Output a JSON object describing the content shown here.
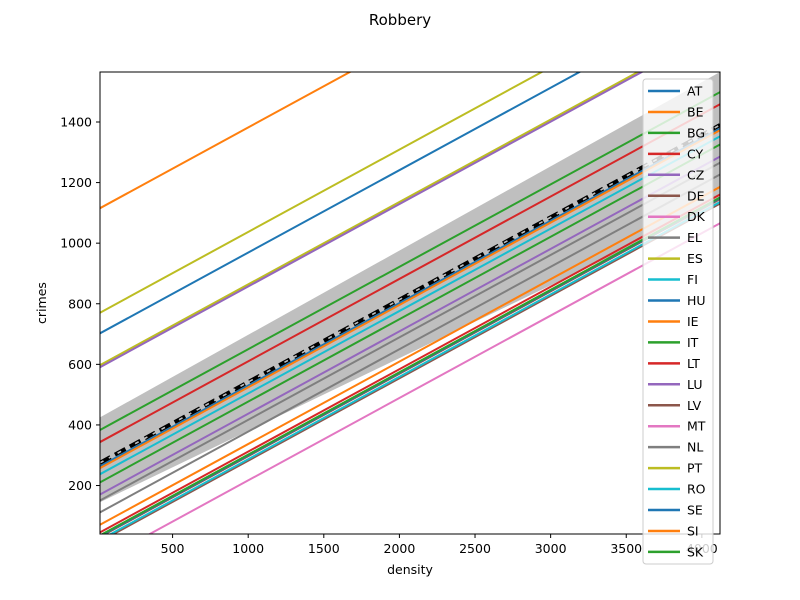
{
  "chart_data": {
    "type": "line",
    "title": "Robbery",
    "xlabel": "density",
    "ylabel": "crimes",
    "xlim": [
      20,
      4120
    ],
    "ylim": [
      40,
      1565
    ],
    "xticks": [
      500,
      1000,
      1500,
      2000,
      2500,
      3000,
      3500,
      4000
    ],
    "xtick_labels": [
      "500",
      "1000",
      "1500",
      "2000",
      "2500",
      "3000",
      "3500",
      "4000"
    ],
    "yticks": [
      200,
      400,
      600,
      800,
      1000,
      1200,
      1400
    ],
    "ytick_labels": [
      "200",
      "400",
      "600",
      "800",
      "1000",
      "1200",
      "1400"
    ],
    "grid": false,
    "legend_position": "right",
    "slope": 0.272,
    "band": {
      "x": [
        20,
        4120
      ],
      "lower": [
        145,
        1130
      ],
      "upper": [
        425,
        1565
      ],
      "color": "#bfbfbf"
    },
    "mean_line": {
      "x": [
        20,
        4120
      ],
      "y": [
        275,
        1390
      ],
      "color": "#000000",
      "overlay_color": "#bfbfbf"
    },
    "series": [
      {
        "name": "AT",
        "color": "#1f77b4",
        "intercept": 258
      },
      {
        "name": "BE",
        "color": "#ff7f0e",
        "intercept": 252
      },
      {
        "name": "BG",
        "color": "#2ca02c",
        "intercept": 205
      },
      {
        "name": "CY",
        "color": "#d62728",
        "intercept": 338
      },
      {
        "name": "CZ",
        "color": "#9467bd",
        "intercept": 165
      },
      {
        "name": "DE",
        "color": "#8c564b",
        "intercept": 25
      },
      {
        "name": "DK",
        "color": "#e377c2",
        "intercept": 590
      },
      {
        "name": "EL",
        "color": "#7f7f7f",
        "intercept": 106
      },
      {
        "name": "ES",
        "color": "#bcbd22",
        "intercept": 592
      },
      {
        "name": "FI",
        "color": "#17becf",
        "intercept": 232
      },
      {
        "name": "HU",
        "color": "#1f77b4",
        "intercept": 697
      },
      {
        "name": "IE",
        "color": "#ff7f0e",
        "intercept": 1110
      },
      {
        "name": "IT",
        "color": "#2ca02c",
        "intercept": 378
      },
      {
        "name": "LT",
        "color": "#d62728",
        "intercept": 40
      },
      {
        "name": "LU",
        "color": "#9467bd",
        "intercept": 585
      },
      {
        "name": "LV",
        "color": "#8c564b",
        "intercept": 10
      },
      {
        "name": "MT",
        "color": "#e377c2",
        "intercept": -55
      },
      {
        "name": "NL",
        "color": "#7f7f7f",
        "intercept": 145
      },
      {
        "name": "PT",
        "color": "#bcbd22",
        "intercept": 765
      },
      {
        "name": "RO",
        "color": "#17becf",
        "intercept": 15
      },
      {
        "name": "SE",
        "color": "#1f77b4",
        "intercept": 28
      },
      {
        "name": "SI",
        "color": "#ff7f0e",
        "intercept": 65
      },
      {
        "name": "SK",
        "color": "#2ca02c",
        "intercept": 30
      }
    ]
  }
}
